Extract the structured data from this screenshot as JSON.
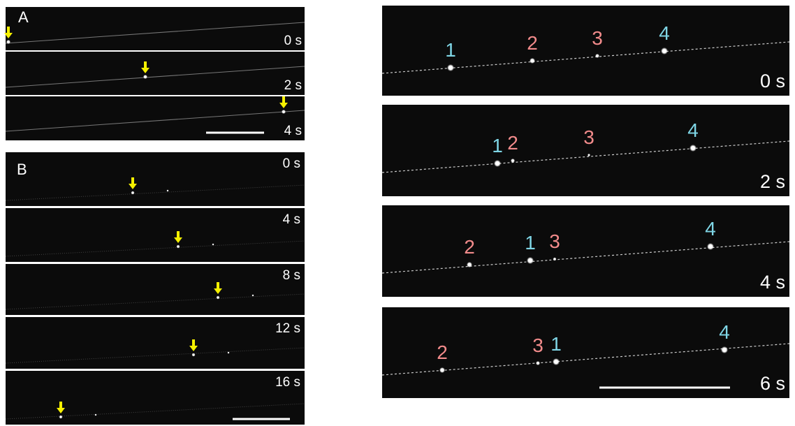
{
  "panel_a": {
    "label": "A",
    "frames": [
      {
        "time": "0 s"
      },
      {
        "time": "2 s"
      },
      {
        "time": "4 s"
      }
    ]
  },
  "panel_b": {
    "label": "B",
    "frames": [
      {
        "time": "0 s"
      },
      {
        "time": "4 s"
      },
      {
        "time": "8 s"
      },
      {
        "time": "12 s"
      },
      {
        "time": "16 s"
      }
    ]
  },
  "panel_c": {
    "frames": [
      {
        "time": "0 s",
        "particles": [
          {
            "label": "1",
            "color": "#7fd6e6"
          },
          {
            "label": "2",
            "color": "#f28b8b"
          },
          {
            "label": "3",
            "color": "#f28b8b"
          },
          {
            "label": "4",
            "color": "#7fd6e6"
          }
        ]
      },
      {
        "time": "2 s",
        "particles": [
          {
            "label": "1",
            "color": "#7fd6e6"
          },
          {
            "label": "2",
            "color": "#f28b8b"
          },
          {
            "label": "3",
            "color": "#f28b8b"
          },
          {
            "label": "4",
            "color": "#7fd6e6"
          }
        ]
      },
      {
        "time": "4 s",
        "particles": [
          {
            "label": "2",
            "color": "#f28b8b"
          },
          {
            "label": "1",
            "color": "#7fd6e6"
          },
          {
            "label": "3",
            "color": "#f28b8b"
          },
          {
            "label": "4",
            "color": "#7fd6e6"
          }
        ]
      },
      {
        "time": "6 s",
        "particles": [
          {
            "label": "2",
            "color": "#f28b8b"
          },
          {
            "label": "3",
            "color": "#f28b8b"
          },
          {
            "label": "1",
            "color": "#7fd6e6"
          },
          {
            "label": "4",
            "color": "#7fd6e6"
          }
        ]
      }
    ]
  }
}
